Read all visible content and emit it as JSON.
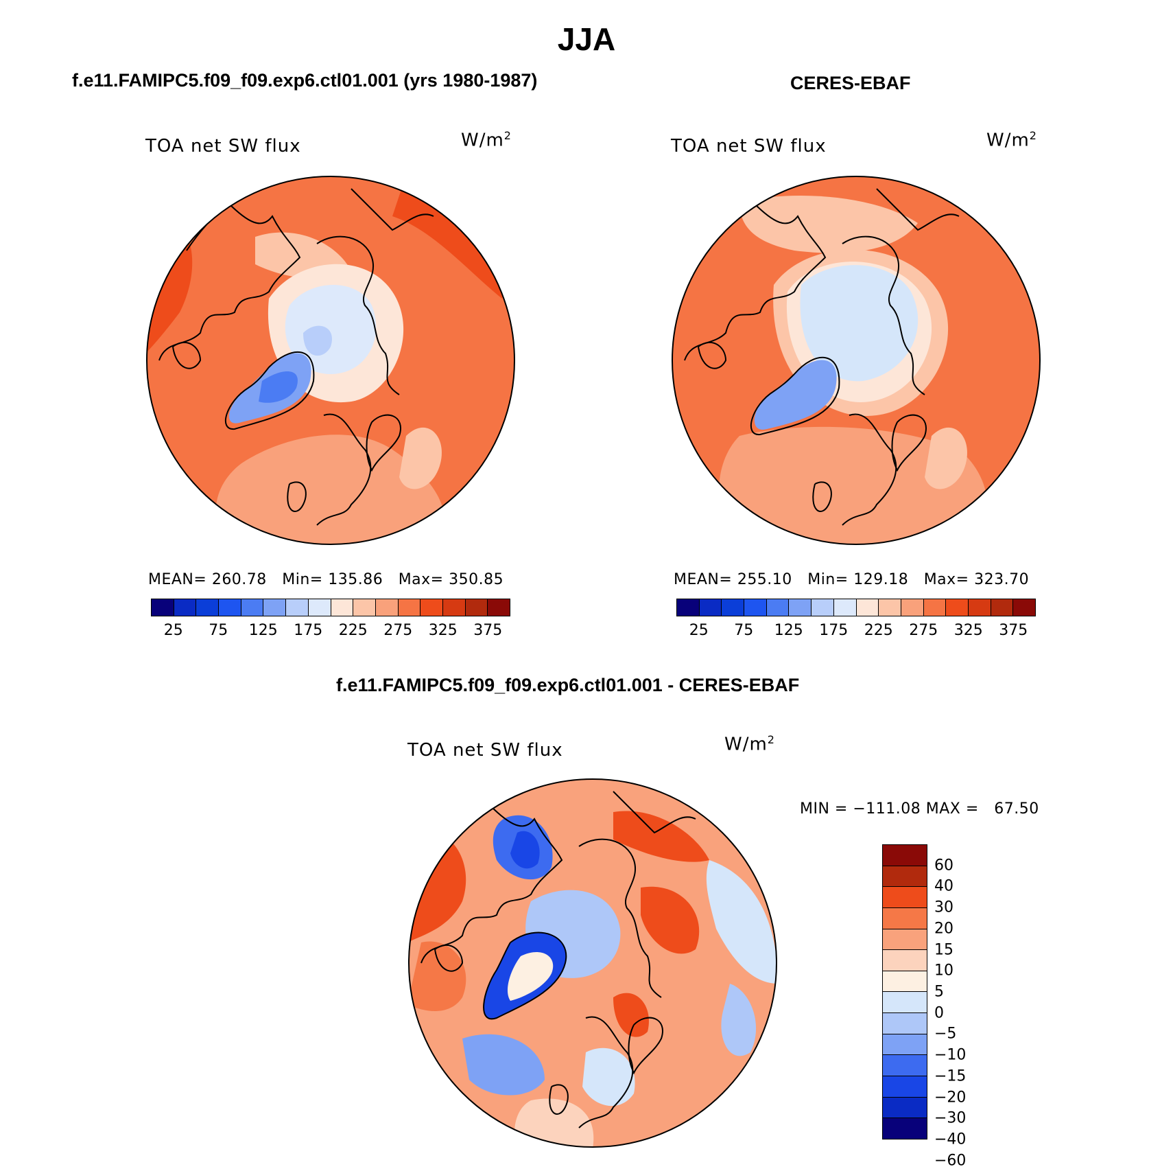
{
  "title": "JJA",
  "panels": [
    {
      "id": "model",
      "subtitle": "f.e11.FAMIPC5.f09_f09.exp6.ctl01.001 (yrs 1980-1987)",
      "variable": "TOA net SW flux",
      "units": "W/m",
      "units_sup": "2",
      "stats": "MEAN= 260.78   Min= 135.86   Max= 350.85"
    },
    {
      "id": "obs",
      "subtitle": "CERES-EBAF",
      "variable": "TOA net SW flux",
      "units": "W/m",
      "units_sup": "2",
      "stats": "MEAN= 255.10   Min= 129.18   Max= 323.70"
    },
    {
      "id": "diff",
      "subtitle": "f.e11.FAMIPC5.f09_f09.exp6.ctl01.001 - CERES-EBAF",
      "variable": "TOA net SW flux",
      "units": "W/m",
      "units_sup": "2",
      "stats": "MIN = −111.08 MAX =   67.50"
    }
  ],
  "colorbars": {
    "abs": {
      "colors": [
        "#08017a",
        "#0a2bc4",
        "#0b3ed8",
        "#1e55f0",
        "#4b7cf3",
        "#7ea2f5",
        "#b8cefa",
        "#dde9fb",
        "#fde6d8",
        "#fcc5a8",
        "#f9a17b",
        "#f57444",
        "#ee4c1b",
        "#d63a12",
        "#b12a0d",
        "#8a0a07"
      ],
      "ticks": [
        "25",
        "75",
        "125",
        "175",
        "225",
        "275",
        "325",
        "375"
      ]
    },
    "diff": {
      "colors": [
        "#08017a",
        "#0a2bc4",
        "#1946e6",
        "#3d6bf0",
        "#7ea2f5",
        "#aec7f8",
        "#d5e6fa",
        "#fdf0e2",
        "#fcd3bd",
        "#f9a27c",
        "#f57847",
        "#ee4c1b",
        "#b12a0d",
        "#8a0a07"
      ],
      "ticks": [
        "60",
        "40",
        "30",
        "20",
        "15",
        "10",
        "5",
        "0",
        "−5",
        "−10",
        "−15",
        "−20",
        "−30",
        "−40",
        "−60"
      ]
    }
  },
  "map_style": {
    "ocean_abs": "#f57444",
    "ocean_diff": "#f9a27c",
    "greenland_abs": "#7ea2f5",
    "arctic_abs": "#dde9fb",
    "arctic_obs": "#d5e6fa"
  }
}
